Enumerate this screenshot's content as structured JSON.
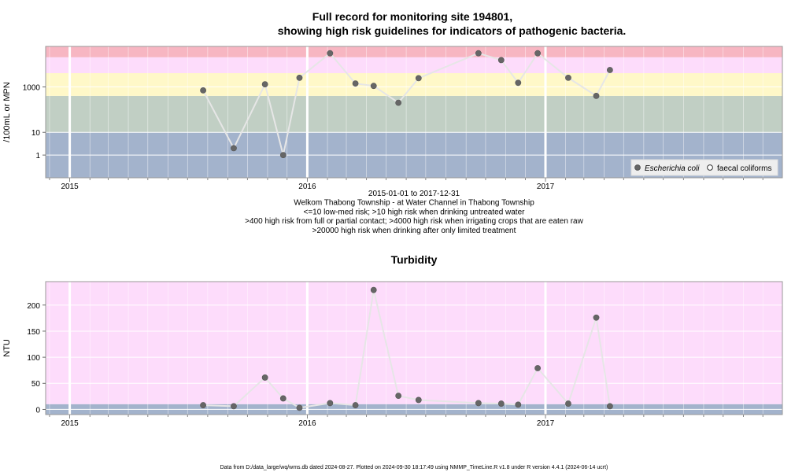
{
  "chart_data": [
    {
      "type": "scatter",
      "title_line1": "Full record for monitoring site 194801,",
      "title_line2": "showing high risk guidelines for indicators of pathogenic bacteria.",
      "ylabel": "/100mL or MPN",
      "y_scale": "log10",
      "y_ticks": [
        {
          "value": 1,
          "label": "1"
        },
        {
          "value": 10,
          "label": "10"
        },
        {
          "value": 1000,
          "label": "1000"
        }
      ],
      "x_ticks": [
        {
          "value": "2015-01-01",
          "label": "2015"
        },
        {
          "value": "2016-01-01",
          "label": "2016"
        },
        {
          "value": "2017-01-01",
          "label": "2017"
        }
      ],
      "x_range": [
        "2014-11-25",
        "2017-12-31"
      ],
      "y_range": [
        0.1,
        60000
      ],
      "bands": [
        {
          "from": 0.1,
          "to": 10,
          "color": "#a3b3cc"
        },
        {
          "from": 10,
          "to": 400,
          "color": "#c1cfc4"
        },
        {
          "from": 400,
          "to": 4000,
          "color": "#fff8c8"
        },
        {
          "from": 4000,
          "to": 20000,
          "color": "#fddcfb"
        },
        {
          "from": 20000,
          "to": 60000,
          "color": "#f7b6c2"
        }
      ],
      "series": [
        {
          "name": "Escherichia coli",
          "marker": "filled",
          "points": [
            {
              "x": "2015-07-25",
              "y": 700
            },
            {
              "x": "2015-09-10",
              "y": 2
            },
            {
              "x": "2015-10-28",
              "y": 1300
            },
            {
              "x": "2015-11-25",
              "y": 1
            },
            {
              "x": "2015-12-20",
              "y": 2500
            },
            {
              "x": "2016-02-05",
              "y": 30000
            },
            {
              "x": "2016-03-15",
              "y": 1400
            },
            {
              "x": "2016-04-12",
              "y": 1100
            },
            {
              "x": "2016-05-20",
              "y": 200
            },
            {
              "x": "2016-06-20",
              "y": 2400
            },
            {
              "x": "2016-09-20",
              "y": 30000
            },
            {
              "x": "2016-10-25",
              "y": 15000
            },
            {
              "x": "2016-11-20",
              "y": 1500
            },
            {
              "x": "2016-12-20",
              "y": 30000
            },
            {
              "x": "2017-02-05",
              "y": 2500
            },
            {
              "x": "2017-03-20",
              "y": 400
            },
            {
              "x": "2017-04-10",
              "y": 5500
            }
          ]
        }
      ],
      "legend": {
        "position": "bottom-right",
        "items": [
          "Escherichia coli",
          "faecal coliforms"
        ]
      },
      "caption_lines": [
        "2015-01-01 to 2017-12-31",
        "Welkom Thabong Township - at Water Channel in Thabong Township",
        "<=10 low-med risk; >10 high risk when drinking untreated water",
        ">400 high risk from full or partial contact; >4000 high risk when irrigating crops that are eaten raw",
        ">20000 high risk when drinking after only limited treatment"
      ]
    },
    {
      "type": "scatter",
      "title": "Turbidity",
      "ylabel": "NTU",
      "y_ticks": [
        {
          "value": 0,
          "label": "0"
        },
        {
          "value": 50,
          "label": "50"
        },
        {
          "value": 100,
          "label": "100"
        },
        {
          "value": 150,
          "label": "150"
        },
        {
          "value": 200,
          "label": "200"
        }
      ],
      "x_ticks": [
        {
          "value": "2015-01-01",
          "label": "2015"
        },
        {
          "value": "2016-01-01",
          "label": "2016"
        },
        {
          "value": "2017-01-01",
          "label": "2017"
        }
      ],
      "x_range": [
        "2014-11-25",
        "2017-12-31"
      ],
      "y_range": [
        -10,
        245
      ],
      "bands": [
        {
          "from": -10,
          "to": 10,
          "color": "#a3b3cc"
        },
        {
          "from": 10,
          "to": 245,
          "color": "#fddcfb"
        }
      ],
      "series": [
        {
          "name": "Turbidity",
          "marker": "filled",
          "points": [
            {
              "x": "2015-07-25",
              "y": 8
            },
            {
              "x": "2015-09-10",
              "y": 6
            },
            {
              "x": "2015-10-28",
              "y": 61
            },
            {
              "x": "2015-11-25",
              "y": 21
            },
            {
              "x": "2015-12-20",
              "y": 3
            },
            {
              "x": "2016-02-05",
              "y": 12
            },
            {
              "x": "2016-03-15",
              "y": 8
            },
            {
              "x": "2016-04-12",
              "y": 229
            },
            {
              "x": "2016-05-20",
              "y": 26
            },
            {
              "x": "2016-06-20",
              "y": 18
            },
            {
              "x": "2016-09-20",
              "y": 12
            },
            {
              "x": "2016-10-25",
              "y": 11
            },
            {
              "x": "2016-11-20",
              "y": 9
            },
            {
              "x": "2016-12-20",
              "y": 79
            },
            {
              "x": "2017-02-05",
              "y": 11
            },
            {
              "x": "2017-03-20",
              "y": 176
            },
            {
              "x": "2017-04-10",
              "y": 6
            }
          ]
        }
      ]
    }
  ],
  "footer": "Data from D:/data_large/wq/wms.db dated 2024-08-27. Plotted on 2024-09-30 18:17:49 using NMMP_TimeLine.R v1.8 under R version 4.4.1 (2024-06-14 ucrt)",
  "colors": {
    "point": "#666666",
    "line": "#e6e6e6",
    "frame": "#999999",
    "legend_bg": "#eeeeee"
  }
}
